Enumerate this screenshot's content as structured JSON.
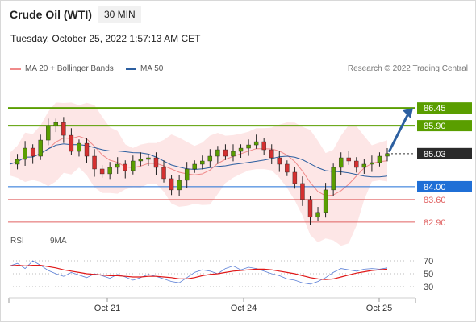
{
  "header": {
    "title": "Crude Oil (WTI)",
    "timeframe": "30 MIN",
    "datetime": "Tuesday, October 25, 2022 1:57:13 AM CET"
  },
  "legend": {
    "ma20": "MA 20 + Bollinger Bands",
    "ma50": "MA 50",
    "ma20_color": "#f08a8a",
    "ma50_color": "#2c5fa0",
    "credit": "Research © 2022 Trading Central"
  },
  "rsi_legend": {
    "rsi": "RSI",
    "ma": "9MA",
    "rsi_color": "#5b7fd6",
    "ma_color": "#e01818"
  },
  "chart_data": [
    {
      "type": "candlestick",
      "title": "Crude Oil (WTI)",
      "interval": "30 MIN",
      "x_ticks": [
        "Oct 21",
        "Oct 24",
        "Oct 25"
      ],
      "y_range": [
        82.72,
        86.98
      ],
      "current_price": 85.03,
      "price_path": [
        84.7,
        84.85,
        85.2,
        84.95,
        85.45,
        85.9,
        86.0,
        85.6,
        85.1,
        85.35,
        84.95,
        84.55,
        84.4,
        84.6,
        84.7,
        84.5,
        84.8,
        84.85,
        84.9,
        84.6,
        84.25,
        83.9,
        84.2,
        84.55,
        84.7,
        84.8,
        84.95,
        85.15,
        84.95,
        85.1,
        85.2,
        85.3,
        85.4,
        85.15,
        84.9,
        84.7,
        84.45,
        84.1,
        83.6,
        83.05,
        83.2,
        83.9,
        84.6,
        84.9,
        84.8,
        84.6,
        84.7,
        84.75,
        84.95,
        85.03
      ],
      "levels": [
        {
          "value": 86.45,
          "label": "86.45",
          "kind": "resistance",
          "color": "#5a9e00"
        },
        {
          "value": 85.9,
          "label": "85.90",
          "kind": "resistance",
          "color": "#5a9e00"
        },
        {
          "value": 85.03,
          "label": "85.03",
          "kind": "last",
          "color": "#2a2a2a"
        },
        {
          "value": 84.0,
          "label": "84.00",
          "kind": "pivot",
          "color": "#1f6fd6"
        },
        {
          "value": 83.6,
          "label": "83.60",
          "kind": "support",
          "color": "#e06060"
        },
        {
          "value": 82.9,
          "label": "82.90",
          "kind": "support",
          "color": "#e06060"
        }
      ],
      "ma20_color": "#f08a8a",
      "ma50_color": "#2c5fa0",
      "band_color": "#fde6e6",
      "up_color": "#5a9e00",
      "down_color": "#d43030",
      "forecast": {
        "direction": "up",
        "target": 86.45,
        "color": "#2c5fa0"
      }
    },
    {
      "type": "line",
      "title": "RSI",
      "y_ticks": [
        30,
        50,
        70
      ],
      "y_range": [
        20,
        80
      ],
      "series": [
        {
          "name": "RSI",
          "color": "#5b7fd6",
          "values": [
            62,
            66,
            58,
            70,
            63,
            55,
            50,
            46,
            52,
            48,
            44,
            50,
            47,
            43,
            49,
            45,
            40,
            44,
            49,
            46,
            42,
            38,
            36,
            44,
            52,
            56,
            54,
            50,
            58,
            62,
            56,
            60,
            58,
            54,
            50,
            47,
            42,
            40,
            36,
            34,
            38,
            44,
            52,
            58,
            56,
            54,
            57,
            58,
            57,
            59
          ]
        },
        {
          "name": "9MA",
          "color": "#e01818",
          "values": [
            62,
            63,
            62,
            63,
            63,
            61,
            59,
            56,
            54,
            52,
            50,
            49,
            48,
            47,
            47,
            46,
            45,
            45,
            46,
            46,
            45,
            44,
            42,
            42,
            44,
            47,
            49,
            50,
            52,
            54,
            55,
            56,
            57,
            57,
            56,
            54,
            52,
            50,
            47,
            44,
            42,
            41,
            42,
            45,
            48,
            51,
            53,
            55,
            56,
            57
          ]
        }
      ]
    }
  ]
}
